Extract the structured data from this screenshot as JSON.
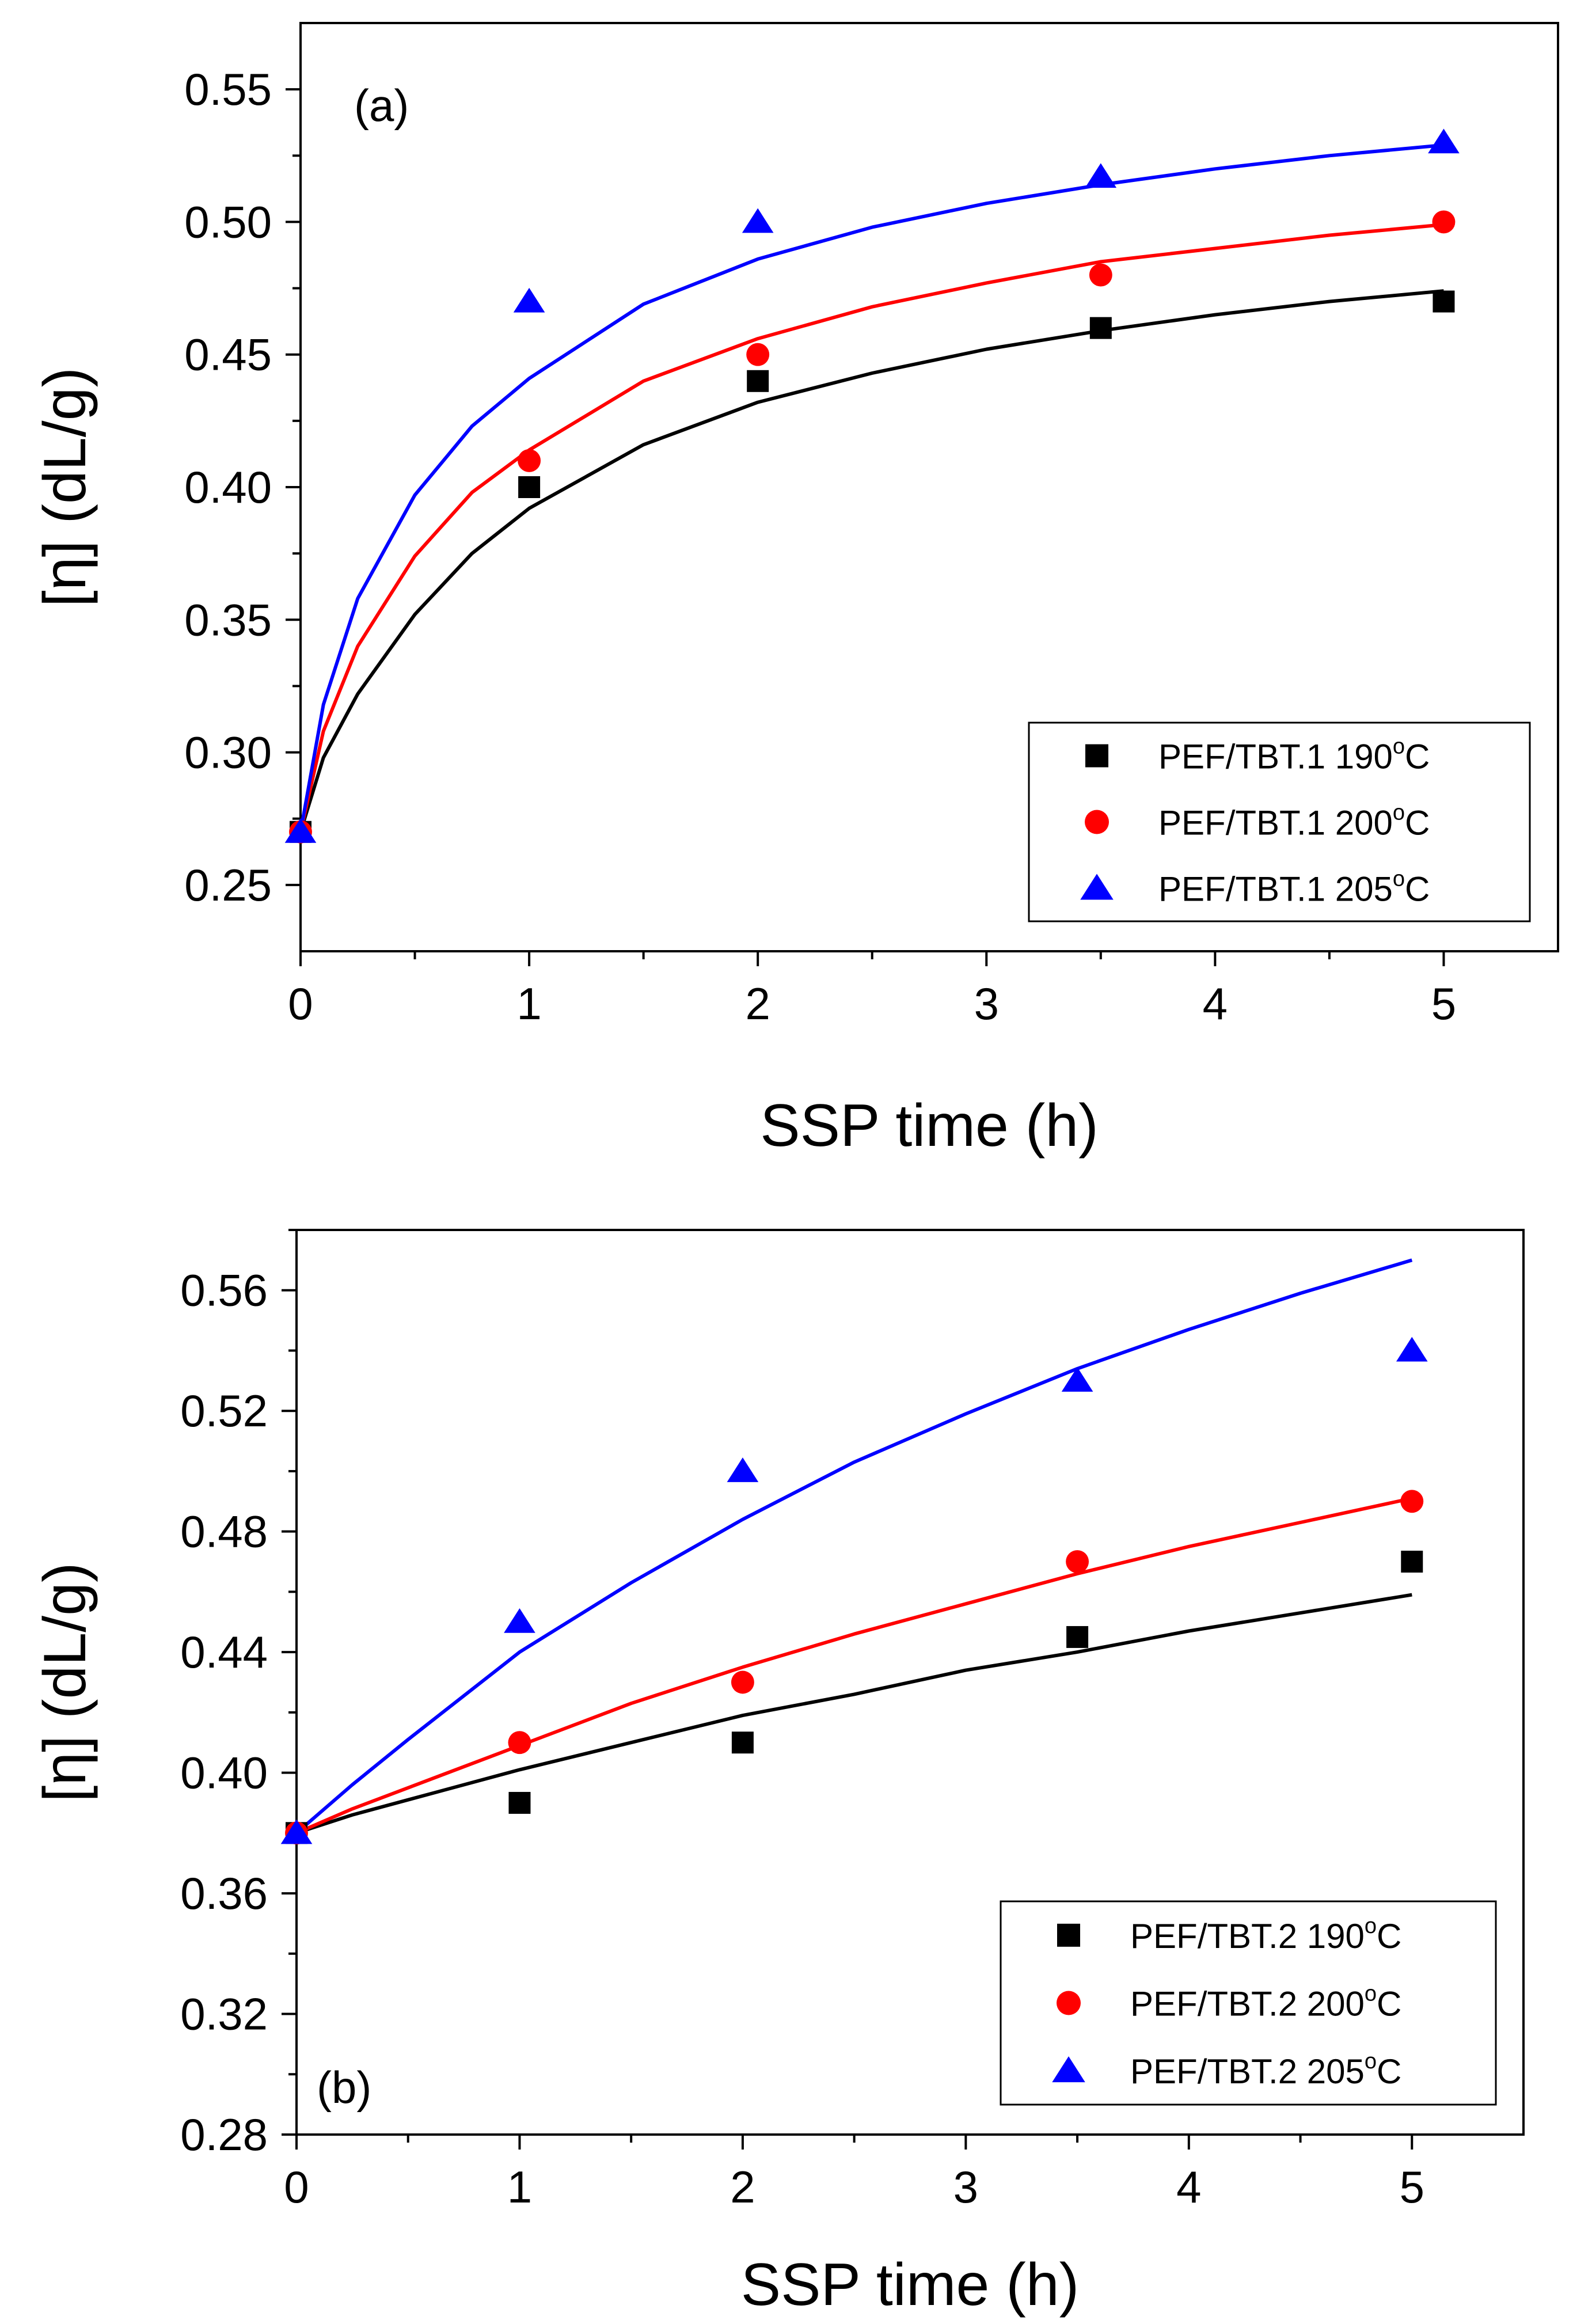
{
  "chart_data": [
    {
      "type": "scatter",
      "panel_label": "(a)",
      "xlabel": "SSP time (h)",
      "ylabel": "[η] (dL/g)",
      "xlim": [
        0,
        5.5
      ],
      "ylim": [
        0.225,
        0.575
      ],
      "xticks": [
        0,
        1,
        2,
        3,
        4,
        5
      ],
      "xtick_labels": [
        "0",
        "1",
        "2",
        "3",
        "4",
        "5"
      ],
      "yticks": [
        0.25,
        0.3,
        0.35,
        0.4,
        0.45,
        0.5,
        0.55
      ],
      "ytick_labels": [
        "0.25",
        "0.30",
        "0.35",
        "0.40",
        "0.45",
        "0.50",
        "0.55"
      ],
      "legend_position": "bottom-right",
      "series": [
        {
          "name": "PEF/TBT.1 190°C",
          "legend_main": "PEF/TBT.1 190",
          "legend_sup": "o",
          "legend_unit": "C",
          "color": "#000000",
          "marker": "square",
          "x": [
            0,
            1,
            2,
            3.5,
            5
          ],
          "y": [
            0.27,
            0.4,
            0.44,
            0.46,
            0.47
          ],
          "fit": {
            "x": [
              0,
              0.1,
              0.25,
              0.5,
              0.75,
              1,
              1.5,
              2,
              2.5,
              3,
              3.5,
              4,
              4.5,
              5
            ],
            "y": [
              0.27,
              0.298,
              0.322,
              0.352,
              0.375,
              0.392,
              0.416,
              0.432,
              0.443,
              0.452,
              0.459,
              0.465,
              0.47,
              0.474
            ]
          }
        },
        {
          "name": "PEF/TBT.1 200°C",
          "legend_main": "PEF/TBT.1 200",
          "legend_sup": "o",
          "legend_unit": "C",
          "color": "#ff0000",
          "marker": "circle",
          "x": [
            0,
            1,
            2,
            3.5,
            5
          ],
          "y": [
            0.27,
            0.41,
            0.45,
            0.48,
            0.5
          ],
          "fit": {
            "x": [
              0,
              0.1,
              0.25,
              0.5,
              0.75,
              1,
              1.5,
              2,
              2.5,
              3,
              3.5,
              4,
              4.5,
              5
            ],
            "y": [
              0.27,
              0.308,
              0.34,
              0.374,
              0.398,
              0.414,
              0.44,
              0.456,
              0.468,
              0.477,
              0.485,
              0.49,
              0.495,
              0.499
            ]
          }
        },
        {
          "name": "PEF/TBT.1 205°C",
          "legend_main": "PEF/TBT.1 205",
          "legend_sup": "o",
          "legend_unit": "C",
          "color": "#0000ff",
          "marker": "triangle",
          "x": [
            0,
            1,
            2,
            3.5,
            5
          ],
          "y": [
            0.27,
            0.47,
            0.5,
            0.517,
            0.53
          ],
          "fit": {
            "x": [
              0,
              0.1,
              0.25,
              0.5,
              0.75,
              1,
              1.5,
              2,
              2.5,
              3,
              3.5,
              4,
              4.5,
              5
            ],
            "y": [
              0.27,
              0.318,
              0.358,
              0.397,
              0.423,
              0.441,
              0.469,
              0.486,
              0.498,
              0.507,
              0.514,
              0.52,
              0.525,
              0.529
            ]
          }
        }
      ]
    },
    {
      "type": "scatter",
      "panel_label": "(b)",
      "xlabel": "SSP time (h)",
      "ylabel": "[η] (dL/g)",
      "xlim": [
        0,
        5.5
      ],
      "ylim": [
        0.28,
        0.58
      ],
      "xticks": [
        0,
        1,
        2,
        3,
        4,
        5
      ],
      "xtick_labels": [
        "0",
        "1",
        "2",
        "3",
        "4",
        "5"
      ],
      "yticks": [
        0.28,
        0.32,
        0.36,
        0.4,
        0.44,
        0.48,
        0.52,
        0.56
      ],
      "ytick_labels": [
        "0.28",
        "0.32",
        "0.36",
        "0.40",
        "0.44",
        "0.48",
        "0.52",
        "0.56"
      ],
      "legend_position": "bottom-right",
      "series": [
        {
          "name": "PEF/TBT.2 190°C",
          "legend_main": "PEF/TBT.2 190",
          "legend_sup": "o",
          "legend_unit": "C",
          "color": "#000000",
          "marker": "square",
          "x": [
            0,
            1,
            2,
            3.5,
            5
          ],
          "y": [
            0.38,
            0.39,
            0.41,
            0.445,
            0.47
          ],
          "fit": {
            "x": [
              0,
              0.25,
              0.5,
              1,
              1.5,
              2,
              2.5,
              3,
              3.5,
              4,
              4.5,
              5
            ],
            "y": [
              0.38,
              0.386,
              0.391,
              0.401,
              0.41,
              0.419,
              0.426,
              0.434,
              0.44,
              0.447,
              0.453,
              0.459
            ]
          }
        },
        {
          "name": "PEF/TBT.2 200°C",
          "legend_main": "PEF/TBT.2 200",
          "legend_sup": "o",
          "legend_unit": "C",
          "color": "#ff0000",
          "marker": "circle",
          "x": [
            0,
            1,
            2,
            3.5,
            5
          ],
          "y": [
            0.38,
            0.41,
            0.43,
            0.47,
            0.49
          ],
          "fit": {
            "x": [
              0,
              0.25,
              0.5,
              1,
              1.5,
              2,
              2.5,
              3,
              3.5,
              4,
              4.5,
              5
            ],
            "y": [
              0.38,
              0.388,
              0.395,
              0.409,
              0.423,
              0.435,
              0.446,
              0.456,
              0.466,
              0.475,
              0.483,
              0.491
            ]
          }
        },
        {
          "name": "PEF/TBT.2 205°C",
          "legend_main": "PEF/TBT.2 205",
          "legend_sup": "o",
          "legend_unit": "C",
          "color": "#0000ff",
          "marker": "triangle",
          "x": [
            0,
            1,
            2,
            3.5,
            5
          ],
          "y": [
            0.38,
            0.45,
            0.5,
            0.53,
            0.54
          ],
          "fit": {
            "x": [
              0,
              0.25,
              0.5,
              1,
              1.5,
              2,
              2.5,
              3,
              3.5,
              4,
              4.5,
              5
            ],
            "y": [
              0.38,
              0.396,
              0.411,
              0.44,
              0.463,
              0.484,
              0.503,
              0.519,
              0.534,
              0.547,
              0.559,
              0.57
            ]
          }
        }
      ]
    }
  ]
}
